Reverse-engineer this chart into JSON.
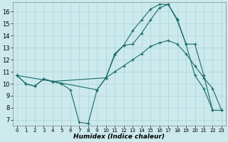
{
  "xlabel": "Humidex (Indice chaleur)",
  "bg_color": "#cce9ec",
  "grid_color": "#aad5d8",
  "line_color": "#1a6b6b",
  "xlim": [
    -0.5,
    23.5
  ],
  "ylim": [
    6.5,
    16.8
  ],
  "xticks": [
    0,
    1,
    2,
    3,
    4,
    5,
    6,
    7,
    8,
    9,
    10,
    11,
    12,
    13,
    14,
    15,
    16,
    17,
    18,
    19,
    20,
    21,
    22,
    23
  ],
  "yticks": [
    7,
    8,
    9,
    10,
    11,
    12,
    13,
    14,
    15,
    16
  ],
  "curve1_x": [
    0,
    1,
    2,
    3,
    4,
    5,
    6,
    7,
    8,
    9,
    10,
    11,
    12,
    13,
    14,
    15,
    16,
    17,
    18,
    19,
    20,
    21,
    22
  ],
  "curve1_y": [
    10.7,
    10.0,
    9.8,
    10.4,
    10.2,
    10.0,
    9.5,
    6.8,
    6.7,
    9.5,
    10.5,
    12.5,
    13.2,
    14.4,
    15.3,
    16.2,
    16.6,
    16.6,
    15.4,
    13.3,
    10.7,
    9.6,
    7.8
  ],
  "curve2_x": [
    0,
    1,
    2,
    3,
    4,
    10,
    11,
    12,
    13,
    14,
    15,
    16,
    17,
    18,
    19,
    20,
    21,
    22,
    23
  ],
  "curve2_y": [
    10.7,
    10.0,
    9.8,
    10.4,
    10.2,
    10.5,
    11.0,
    11.5,
    12.0,
    12.5,
    13.1,
    13.4,
    13.6,
    13.3,
    12.5,
    11.5,
    10.5,
    9.6,
    7.8
  ],
  "curve3_x": [
    0,
    4,
    9,
    10,
    11,
    12,
    13,
    14,
    15,
    16,
    17,
    18,
    19,
    20,
    21,
    22,
    23
  ],
  "curve3_y": [
    10.7,
    10.2,
    9.5,
    10.5,
    12.4,
    13.2,
    13.3,
    14.2,
    15.3,
    16.3,
    16.6,
    15.3,
    13.3,
    13.3,
    10.7,
    7.8,
    7.8
  ]
}
